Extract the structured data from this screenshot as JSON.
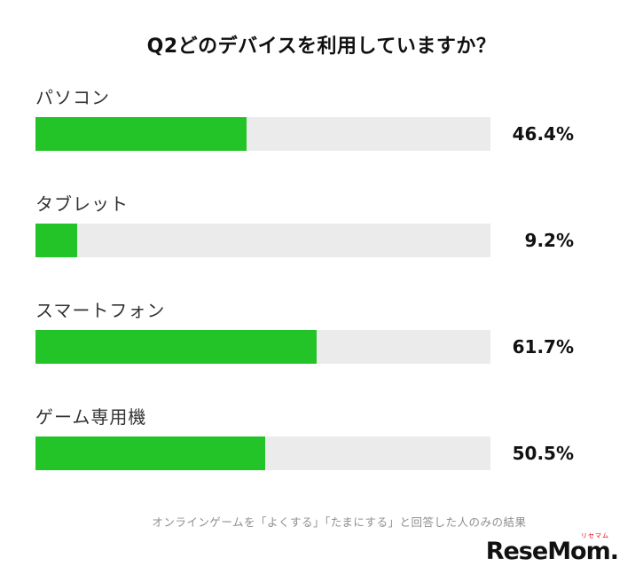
{
  "chart_data": {
    "type": "bar",
    "orientation": "horizontal",
    "title": "Q2どのデバイスを利用していますか？",
    "categories": [
      "パソコン",
      "タブレット",
      "スマートフォン",
      "ゲーム専用機"
    ],
    "values": [
      46.4,
      9.2,
      61.7,
      50.5
    ],
    "value_labels": [
      "46.4%",
      "9.2%",
      "61.7%",
      "50.5%"
    ],
    "xlim": [
      0,
      100
    ],
    "grid": false,
    "legend": "none",
    "bar_color": "#23c428",
    "track_color": "#ebebeb"
  },
  "footnote": "オンラインゲームを「よくする」「たまにする」と回答した人のみの結果",
  "logo": {
    "text": "ReseMom.",
    "ruby": "リセマム",
    "accent_color": "#e60012"
  }
}
